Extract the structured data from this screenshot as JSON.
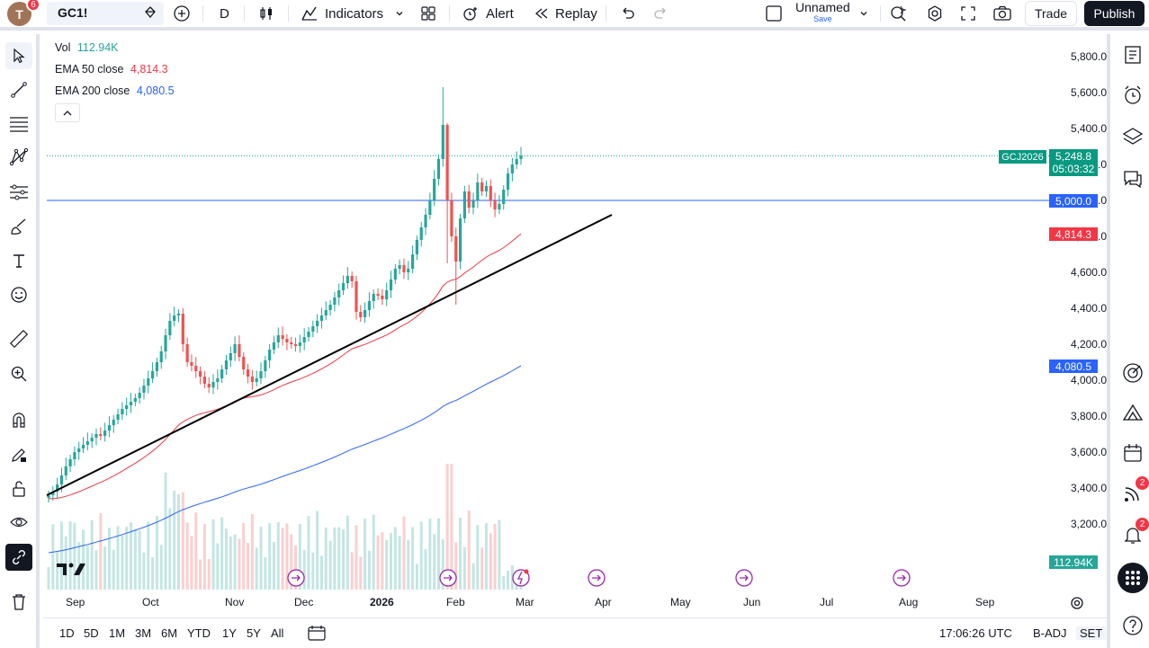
{
  "header": {
    "avatar_letter": "T",
    "avatar_badge": "6",
    "symbol": "GC1!",
    "interval": "D",
    "indicators_label": "Indicators",
    "alert_label": "Alert",
    "replay_label": "Replay",
    "layout_name": "Unnamed",
    "layout_save": "Save",
    "trade_label": "Trade",
    "publish_label": "Publish"
  },
  "legend": {
    "vol_label": "Vol",
    "vol_value": "112.94K",
    "ema50_label": "EMA 50 close",
    "ema50_value": "4,814.3",
    "ema200_label": "EMA 200 close",
    "ema200_value": "4,080.5",
    "toggle_glyph": "^"
  },
  "price_axis": {
    "labels": [
      "5,800.0",
      "5,600.0",
      "5,400.0",
      "5,200.0",
      "5,000.0",
      "4,800.0",
      "4,600.0",
      "4,400.0",
      "4,200.0",
      "4,000.0",
      "3,800.0",
      "3,600.0",
      "3,400.0",
      "3,200.0"
    ],
    "symbol_tag": "GCJ2026",
    "last_price": "5,248.8",
    "countdown": "05:03:32",
    "hline_price": "5,000.0",
    "ema50_tag": "4,814.3",
    "ema200_tag": "4,080.5",
    "volume_tag": "112.94K"
  },
  "time_axis": {
    "labels": [
      "Sep",
      "Oct",
      "Nov",
      "Dec",
      "2026",
      "Feb",
      "Mar",
      "Apr",
      "May",
      "Jun",
      "Jul",
      "Aug",
      "Sep"
    ]
  },
  "bottom": {
    "ranges": [
      "1D",
      "5D",
      "1M",
      "3M",
      "6M",
      "YTD",
      "1Y",
      "5Y",
      "All"
    ],
    "clock": "17:06:26 UTC",
    "adj": "B-ADJ",
    "session": "SET"
  },
  "right_toolbar": {
    "feed_badge": "2",
    "alerts_badge": "2"
  },
  "colors": {
    "up": "#26a69a",
    "down": "#ef5350",
    "ema50": "#f23645",
    "ema200": "#2962ff",
    "hline": "#2962ff",
    "trendline": "#000000"
  },
  "chart_data": {
    "type": "candlestick",
    "symbol": "GCJ2026",
    "ylim": [
      3200,
      5900
    ],
    "hline": 5000,
    "last": 5248.8,
    "ema50_last": 4814.3,
    "ema200_last": 4080.5,
    "closes": [
      3360,
      3380,
      3420,
      3470,
      3520,
      3560,
      3600,
      3620,
      3640,
      3660,
      3680,
      3700,
      3690,
      3720,
      3750,
      3780,
      3810,
      3840,
      3860,
      3880,
      3900,
      3930,
      3970,
      4010,
      4050,
      4100,
      4160,
      4250,
      4330,
      4360,
      4370,
      4200,
      4100,
      4080,
      4050,
      4020,
      3980,
      3960,
      3990,
      4010,
      4060,
      4110,
      4150,
      4200,
      4130,
      4060,
      4020,
      3990,
      4010,
      4050,
      4110,
      4170,
      4210,
      4250,
      4230,
      4210,
      4200,
      4190,
      4210,
      4240,
      4270,
      4300,
      4330,
      4360,
      4390,
      4420,
      4460,
      4500,
      4540,
      4580,
      4550,
      4380,
      4350,
      4390,
      4440,
      4480,
      4470,
      4450,
      4500,
      4560,
      4620,
      4640,
      4600,
      4620,
      4700,
      4780,
      4850,
      4920,
      5000,
      5120,
      5230,
      5420,
      5000,
      4800,
      4660,
      4900,
      5050,
      4960,
      5000,
      5100,
      5050,
      5080,
      5000,
      4950,
      4980,
      5060,
      5150,
      5200,
      5230,
      5248.8
    ]
  }
}
